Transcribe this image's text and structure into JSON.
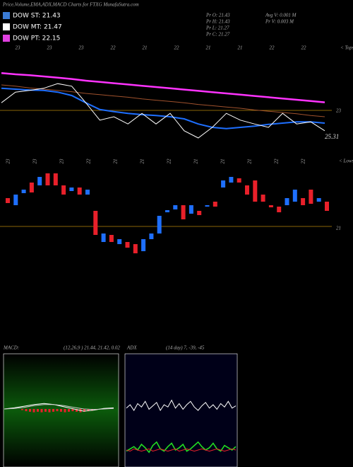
{
  "header": {
    "title": "Price,Volume,EMA,ADX,MACD Charts for FTXG MunafaSutra.com"
  },
  "legend": [
    {
      "label": "DOW ST: 21.43",
      "color": "#3a7bd5"
    },
    {
      "label": "DOW MT: 21.47",
      "color": "#ffffff"
    },
    {
      "label": "DOW PT: 22.15",
      "color": "#e040e0"
    }
  ],
  "info": [
    "Pr  O: 21.43",
    "Pr  H: 21.43",
    "Pr  L: 21.27",
    "Pr  C: 21.27"
  ],
  "volume_info": [
    "Avg V: 0.001 M",
    "Pr  V: 0.003 M"
  ],
  "top_axis_labels": [
    "23",
    "23",
    "23",
    "22",
    "21",
    "22",
    "21",
    "21",
    "22",
    "22"
  ],
  "bottom_axis_labels": [
    "23",
    "23",
    "23",
    "22",
    "21",
    "21",
    "22",
    "21",
    "21",
    "21",
    "22",
    "22"
  ],
  "top_right_labels": {
    "tops": "< Tops",
    "level": "23",
    "last": "25.31"
  },
  "bottom_right_labels": {
    "lows": "< Lows",
    "level": "21"
  },
  "chart_data": [
    {
      "type": "line",
      "ylim": [
        22.0,
        24.1
      ],
      "reference": 23,
      "reference_color": "#b8860b",
      "series": [
        {
          "color": "#ff33ff",
          "values": [
            23.88,
            23.85,
            23.83,
            23.8,
            23.77,
            23.74,
            23.7,
            23.67,
            23.64,
            23.61,
            23.58,
            23.55,
            23.52,
            23.49,
            23.46,
            23.43,
            23.4,
            23.37,
            23.34,
            23.31,
            23.28,
            23.25,
            23.22,
            23.19
          ]
        },
        {
          "color": "#a0522d",
          "values": [
            23.6,
            23.57,
            23.53,
            23.5,
            23.47,
            23.44,
            23.4,
            23.37,
            23.34,
            23.31,
            23.27,
            23.24,
            23.21,
            23.18,
            23.14,
            23.11,
            23.08,
            23.05,
            23.01,
            22.98,
            22.95,
            22.92,
            22.88,
            22.85
          ]
        },
        {
          "color": "#1e6fff",
          "values": [
            23.52,
            23.5,
            23.48,
            23.47,
            23.43,
            23.35,
            23.18,
            23.02,
            22.97,
            22.93,
            22.9,
            22.88,
            22.85,
            22.8,
            22.68,
            22.6,
            22.57,
            22.6,
            22.63,
            22.67,
            22.7,
            22.73,
            22.73,
            22.7
          ]
        },
        {
          "color": "#ffffff",
          "values": [
            23.18,
            23.43,
            23.47,
            23.52,
            23.63,
            23.57,
            23.18,
            22.77,
            22.85,
            22.68,
            22.93,
            22.68,
            22.93,
            22.52,
            22.35,
            22.6,
            22.93,
            22.77,
            22.68,
            22.6,
            22.93,
            22.68,
            22.73,
            22.52
          ]
        }
      ]
    },
    {
      "type": "candlestick",
      "ylim": [
        20.0,
        22.8
      ],
      "reference": 21,
      "reference_color": "#b8860b",
      "up_color": "#1e6fff",
      "down_color": "#e8202a",
      "open": [
        21.8,
        21.6,
        21.94,
        22.24,
        22.16,
        22.5,
        22.5,
        22.16,
        22.0,
        22.1,
        21.9,
        21.44,
        20.56,
        20.76,
        20.5,
        20.56,
        20.5,
        20.3,
        20.64,
        20.8,
        21.4,
        21.48,
        21.6,
        21.36,
        21.44,
        21.56,
        21.7,
        22.1,
        22.24,
        22.36,
        22.16,
        22.3,
        21.9,
        21.6,
        21.56,
        21.6,
        21.7,
        21.8,
        22.04,
        21.7,
        21.7
      ],
      "close": [
        21.66,
        21.9,
        22.04,
        21.96,
        22.4,
        22.16,
        22.16,
        21.9,
        22.1,
        21.9,
        22.04,
        20.76,
        20.8,
        20.56,
        20.64,
        20.4,
        20.24,
        20.64,
        20.8,
        21.3,
        21.46,
        21.6,
        21.2,
        21.6,
        21.32,
        21.6,
        21.56,
        22.3,
        22.4,
        22.24,
        21.9,
        21.7,
        21.7,
        21.54,
        21.4,
        21.8,
        22.04,
        21.6,
        21.64,
        21.8,
        21.44
      ]
    },
    {
      "type": "macd",
      "title": "MACD:",
      "subtitle": "(12,26,9 ) 21.44, 21.42, 0.02",
      "ylim": [
        -1,
        1
      ],
      "series": [
        {
          "color": "#ffffff",
          "values": [
            0,
            0.02,
            0.05,
            0.08,
            0.1,
            0.08,
            0.04,
            0,
            -0.04,
            -0.02,
            0.01,
            0.02
          ]
        },
        {
          "color": "#cccccc",
          "values": [
            0,
            0.01,
            0.03,
            0.06,
            0.08,
            0.08,
            0.06,
            0.03,
            0,
            -0.01,
            0,
            0.01
          ]
        }
      ],
      "histogram_color": "#e8202a",
      "histogram": [
        -0.02,
        -0.04,
        -0.05,
        -0.06,
        -0.05,
        -0.06,
        -0.05,
        -0.06,
        -0.05,
        -0.04,
        -0.05,
        -0.06,
        -0.05,
        -0.04,
        -0.05,
        -0.06,
        -0.05,
        -0.04,
        -0.03,
        -0.02
      ]
    },
    {
      "type": "adx",
      "title": "ADX",
      "subtitle": "(14 day) 7, -39, -45",
      "ylim": [
        0,
        100
      ],
      "series": [
        {
          "color": "#ffffff",
          "values": [
            52,
            55,
            50,
            56,
            53,
            58,
            51,
            54,
            57,
            50,
            55,
            53,
            59,
            52,
            56,
            51,
            55,
            58,
            53,
            50,
            54,
            57,
            52,
            55,
            51,
            56,
            53,
            58,
            52,
            54
          ]
        },
        {
          "color": "#22dd22",
          "values": [
            14,
            16,
            18,
            15,
            20,
            17,
            13,
            19,
            22,
            16,
            14,
            18,
            21,
            15,
            17,
            20,
            14,
            16,
            19,
            22,
            18,
            15,
            17,
            21,
            16,
            14,
            19,
            17,
            15,
            18
          ]
        },
        {
          "color": "#e8202a",
          "values": [
            15,
            14,
            16,
            15,
            14,
            15,
            16,
            14,
            15,
            16,
            15,
            14,
            15,
            16,
            14,
            15,
            16,
            15,
            14,
            15,
            16,
            15,
            14,
            15,
            16,
            15,
            14,
            15,
            16,
            15
          ]
        }
      ]
    }
  ]
}
